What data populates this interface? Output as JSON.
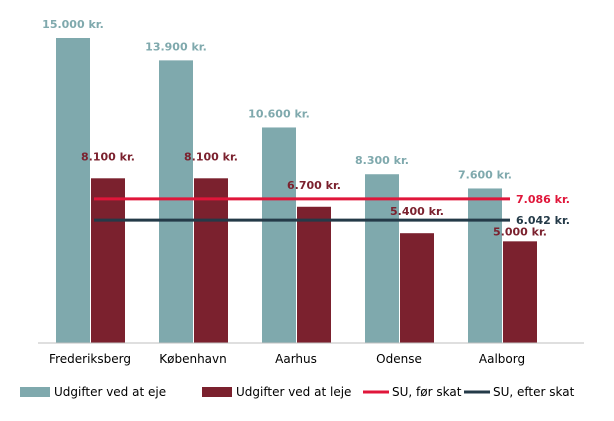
{
  "chart_data": {
    "type": "bar",
    "categories": [
      "Frederiksberg",
      "København",
      "Aarhus",
      "Odense",
      "Aalborg"
    ],
    "series": [
      {
        "name": "Udgifter ved at eje",
        "values": [
          15000,
          13900,
          10600,
          8300,
          7600
        ],
        "labels": [
          "15.000 kr.",
          "13.900 kr.",
          "10.600 kr.",
          "8.300 kr.",
          "7.600 kr."
        ],
        "color": "#7fa9ad",
        "label_color": "#7fa9ad"
      },
      {
        "name": "Udgifter ved at leje",
        "values": [
          8100,
          8100,
          6700,
          5400,
          5000
        ],
        "labels": [
          "8.100 kr.",
          "8.100 kr.",
          "6.700 kr.",
          "5.400 kr.",
          "5.000 kr."
        ],
        "color": "#7b212e",
        "label_color": "#7b212e"
      }
    ],
    "lines": [
      {
        "name": "SU, før skat",
        "value": 7086,
        "label": "7.086 kr.",
        "color": "#e0163a"
      },
      {
        "name": "SU, efter skat",
        "value": 6042,
        "label": "6.042 kr.",
        "color": "#243a48"
      }
    ],
    "ylim": [
      0,
      15000
    ],
    "grid": false,
    "legend_position": "bottom"
  }
}
